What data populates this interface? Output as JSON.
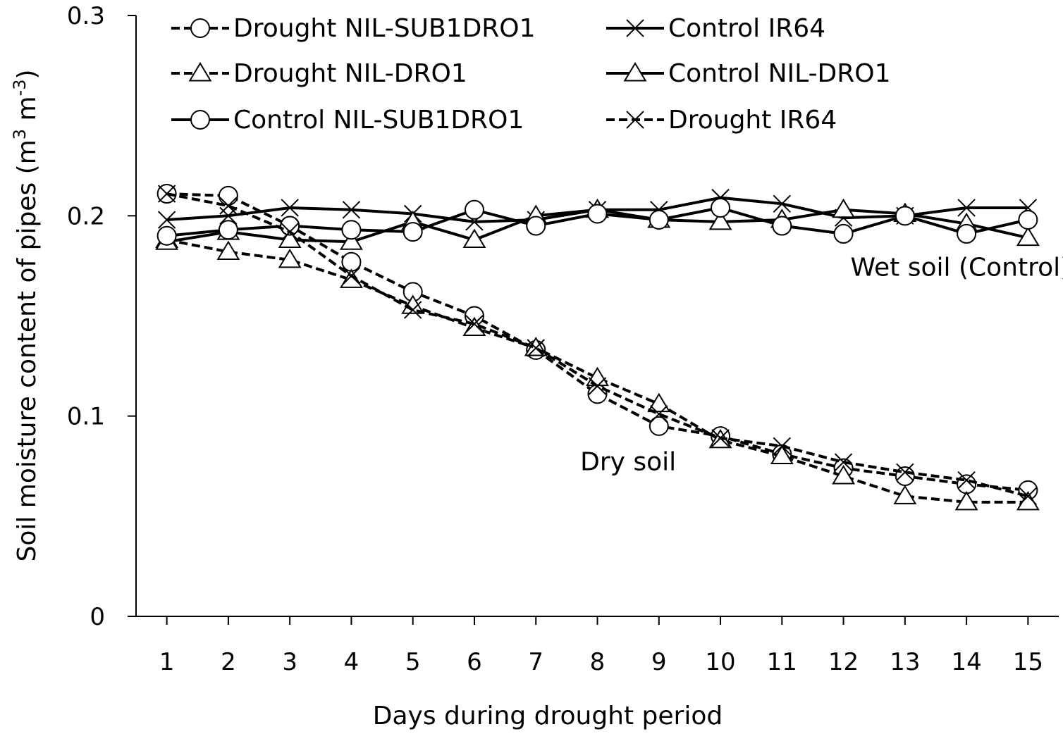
{
  "chart_data": {
    "type": "line",
    "title": "",
    "xlabel": "Days during drought period",
    "ylabel_main": "Soil moisture content of pipes (m",
    "ylabel_sup1": "3",
    "ylabel_mid": " m",
    "ylabel_sup2": "-3",
    "ylabel_end": ")",
    "x": [
      1,
      2,
      3,
      4,
      5,
      6,
      7,
      8,
      9,
      10,
      11,
      12,
      13,
      14,
      15
    ],
    "xlim": [
      0.5,
      15.5
    ],
    "ylim": [
      0,
      0.3
    ],
    "yticks": [
      0,
      0.1,
      0.2,
      0.3
    ],
    "ytick_labels": [
      "0",
      "0.1",
      "0.2",
      "0.3"
    ],
    "grid": false,
    "legend_position": "top",
    "series": [
      {
        "name": "Drought NIL-SUB1DRO1",
        "marker": "circle",
        "dash": true,
        "values": [
          0.211,
          0.21,
          0.195,
          0.177,
          0.162,
          0.15,
          0.133,
          0.111,
          0.095,
          0.09,
          0.081,
          0.074,
          0.07,
          0.066,
          0.063
        ]
      },
      {
        "name": "Control IR64",
        "marker": "x",
        "dash": false,
        "values": [
          0.198,
          0.2,
          0.204,
          0.203,
          0.201,
          0.197,
          0.198,
          0.203,
          0.203,
          0.209,
          0.206,
          0.199,
          0.2,
          0.204,
          0.204
        ]
      },
      {
        "name": "Drought NIL-DRO1",
        "marker": "triangle",
        "dash": true,
        "values": [
          0.188,
          0.182,
          0.178,
          0.168,
          0.155,
          0.144,
          0.134,
          0.119,
          0.106,
          0.088,
          0.08,
          0.07,
          0.06,
          0.057,
          0.057
        ]
      },
      {
        "name": "Control NIL-DRO1",
        "marker": "triangle",
        "dash": false,
        "values": [
          0.187,
          0.192,
          0.188,
          0.187,
          0.197,
          0.188,
          0.2,
          0.203,
          0.198,
          0.197,
          0.198,
          0.203,
          0.201,
          0.196,
          0.189
        ]
      },
      {
        "name": "Control NIL-SUB1DRO1",
        "marker": "circle",
        "dash": false,
        "values": [
          0.19,
          0.193,
          0.195,
          0.193,
          0.192,
          0.203,
          0.195,
          0.201,
          0.198,
          0.204,
          0.195,
          0.191,
          0.2,
          0.191,
          0.198
        ]
      },
      {
        "name": "Drought IR64",
        "marker": "x",
        "dash": true,
        "values": [
          0.211,
          0.205,
          0.192,
          0.17,
          0.153,
          0.146,
          0.134,
          0.115,
          0.101,
          0.089,
          0.085,
          0.077,
          0.072,
          0.068,
          0.06
        ]
      }
    ],
    "annotations": [
      {
        "text": "Wet soil (Control)",
        "x": 13.9,
        "y": 0.17
      },
      {
        "text": "Dry soil",
        "x": 8.5,
        "y": 0.073
      }
    ]
  }
}
